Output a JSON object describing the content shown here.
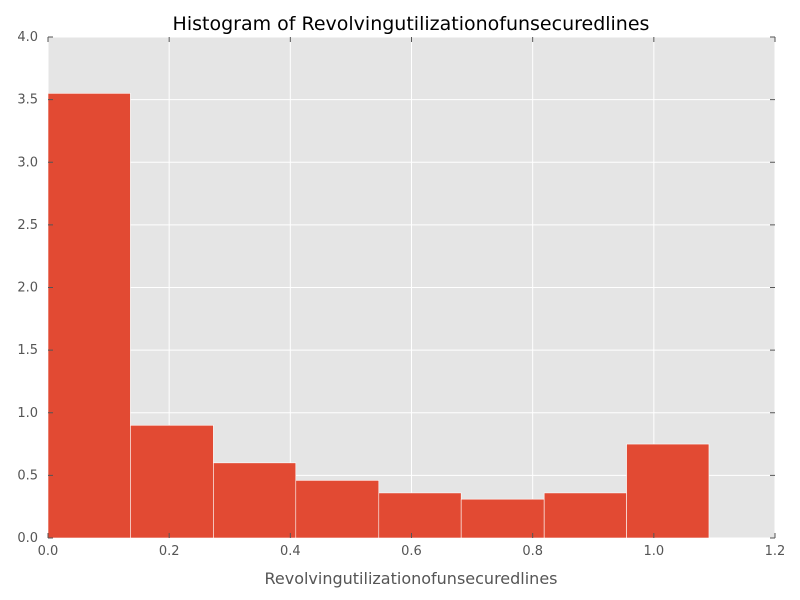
{
  "chart_data": {
    "type": "bar",
    "title": "Histogram of Revolvingutilizationofunsecuredlines",
    "xlabel": "Revolvingutilizationofunsecuredlines",
    "ylabel": "",
    "xlim": [
      0.0,
      1.2
    ],
    "ylim": [
      0.0,
      4.0
    ],
    "xticks": [
      "0.0",
      "0.2",
      "0.4",
      "0.6",
      "0.8",
      "1.0",
      "1.2"
    ],
    "yticks": [
      "0.0",
      "0.5",
      "1.0",
      "1.5",
      "2.0",
      "2.5",
      "3.0",
      "3.5",
      "4.0"
    ],
    "grid": true,
    "bins": [
      {
        "x0": 0.0,
        "x1": 0.136,
        "value": 3.55
      },
      {
        "x0": 0.136,
        "x1": 0.273,
        "value": 0.9
      },
      {
        "x0": 0.273,
        "x1": 0.409,
        "value": 0.6
      },
      {
        "x0": 0.409,
        "x1": 0.546,
        "value": 0.46
      },
      {
        "x0": 0.546,
        "x1": 0.682,
        "value": 0.36
      },
      {
        "x0": 0.682,
        "x1": 0.819,
        "value": 0.31
      },
      {
        "x0": 0.819,
        "x1": 0.955,
        "value": 0.36
      },
      {
        "x0": 0.955,
        "x1": 1.091,
        "value": 0.75
      }
    ],
    "colors": {
      "bar": "#E24A33",
      "background": "#E5E5E5",
      "grid": "#FFFFFF",
      "tick": "#555555"
    }
  }
}
